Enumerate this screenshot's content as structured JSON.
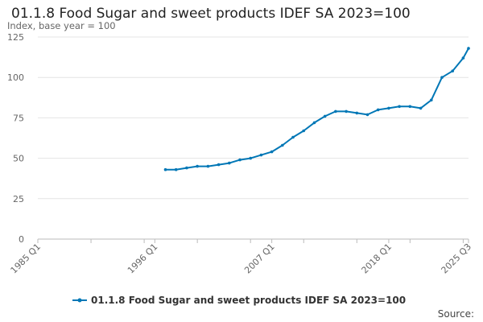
{
  "chart_data": {
    "type": "line",
    "title": "01.1.8 Food Sugar and sweet products IDEF SA 2023=100",
    "subtitle": "Index, base year = 100",
    "xlabel": "",
    "ylabel": "Index, base year = 100",
    "x_ticks": [
      "1985 Q1",
      "1996 Q1",
      "2007 Q1",
      "2018 Q1",
      "2025 Q3"
    ],
    "y_ticks": [
      0,
      25,
      50,
      75,
      100,
      125
    ],
    "ylim": [
      0,
      125
    ],
    "grid": true,
    "legend_position": "bottom",
    "series": [
      {
        "name": "01.1.8 Food Sugar and sweet products IDEF SA 2023=100",
        "color": "#0077b6",
        "x": [
          "1997 Q1",
          "1998 Q1",
          "1999 Q1",
          "2000 Q1",
          "2001 Q1",
          "2002 Q1",
          "2003 Q1",
          "2004 Q1",
          "2005 Q1",
          "2006 Q1",
          "2007 Q1",
          "2008 Q1",
          "2009 Q1",
          "2010 Q1",
          "2011 Q1",
          "2012 Q1",
          "2013 Q1",
          "2014 Q1",
          "2015 Q1",
          "2016 Q1",
          "2017 Q1",
          "2018 Q1",
          "2019 Q1",
          "2020 Q1",
          "2021 Q1",
          "2022 Q1",
          "2023 Q1",
          "2024 Q1",
          "2025 Q1",
          "2025 Q3"
        ],
        "values": [
          43,
          43,
          44,
          45,
          45,
          46,
          47,
          49,
          50,
          52,
          54,
          58,
          63,
          67,
          72,
          76,
          79,
          79,
          78,
          77,
          80,
          81,
          82,
          82,
          81,
          86,
          100,
          104,
          112,
          118
        ]
      }
    ]
  },
  "source_label": "Source:"
}
